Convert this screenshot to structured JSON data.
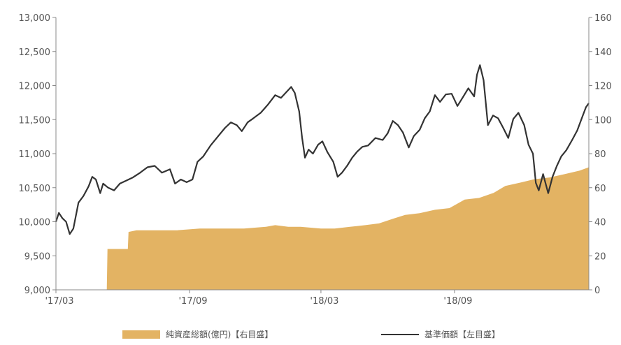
{
  "chart_data": {
    "type": "line",
    "x_ticks": [
      "'17/03",
      "'17/09",
      "'18/03",
      "'18/09"
    ],
    "left_axis": {
      "ticks": [
        "9,000",
        "9,500",
        "10,000",
        "10,500",
        "11,000",
        "11,500",
        "12,000",
        "12,500",
        "13,000"
      ],
      "range": [
        9000,
        13000
      ]
    },
    "right_axis": {
      "ticks": [
        "0",
        "20",
        "40",
        "60",
        "80",
        "100",
        "120",
        "140",
        "160"
      ],
      "range": [
        0,
        160
      ]
    },
    "grid": false,
    "series": [
      {
        "name": "純資産総額(億円)【右目盛】",
        "kind": "area",
        "axis": "right",
        "color": "#e3b363",
        "points": [
          [
            "2017-03-01",
            0
          ],
          [
            "2017-05-10",
            0
          ],
          [
            "2017-05-11",
            24
          ],
          [
            "2017-06-08",
            24
          ],
          [
            "2017-06-09",
            34
          ],
          [
            "2017-06-20",
            35
          ],
          [
            "2017-07-15",
            35
          ],
          [
            "2017-08-15",
            35
          ],
          [
            "2017-09-15",
            36
          ],
          [
            "2017-10-15",
            36
          ],
          [
            "2017-11-15",
            36
          ],
          [
            "2017-12-15",
            37
          ],
          [
            "2017-12-28",
            38
          ],
          [
            "2018-01-15",
            37
          ],
          [
            "2018-02-01",
            37
          ],
          [
            "2018-03-01",
            36
          ],
          [
            "2018-03-20",
            36
          ],
          [
            "2018-04-10",
            37
          ],
          [
            "2018-05-01",
            38
          ],
          [
            "2018-05-20",
            39
          ],
          [
            "2018-06-10",
            42
          ],
          [
            "2018-06-25",
            44
          ],
          [
            "2018-07-15",
            45
          ],
          [
            "2018-08-05",
            47
          ],
          [
            "2018-08-25",
            48
          ],
          [
            "2018-09-15",
            53
          ],
          [
            "2018-10-05",
            54
          ],
          [
            "2018-10-25",
            57
          ],
          [
            "2018-11-10",
            61
          ],
          [
            "2018-12-01",
            63
          ],
          [
            "2018-12-20",
            65
          ],
          [
            "2019-01-10",
            66
          ],
          [
            "2019-01-31",
            68
          ],
          [
            "2019-02-20",
            70
          ],
          [
            "2019-03-05",
            72
          ]
        ]
      },
      {
        "name": "基準価額【左目盛】",
        "kind": "line",
        "axis": "left",
        "color": "#333333",
        "points": [
          [
            "2017-03-01",
            10000
          ],
          [
            "2017-03-05",
            10130
          ],
          [
            "2017-03-10",
            10050
          ],
          [
            "2017-03-15",
            10000
          ],
          [
            "2017-03-20",
            9820
          ],
          [
            "2017-03-25",
            9900
          ],
          [
            "2017-04-01",
            10280
          ],
          [
            "2017-04-08",
            10380
          ],
          [
            "2017-04-15",
            10520
          ],
          [
            "2017-04-20",
            10660
          ],
          [
            "2017-04-25",
            10620
          ],
          [
            "2017-05-01",
            10420
          ],
          [
            "2017-05-05",
            10560
          ],
          [
            "2017-05-12",
            10500
          ],
          [
            "2017-05-20",
            10460
          ],
          [
            "2017-05-28",
            10560
          ],
          [
            "2017-06-05",
            10600
          ],
          [
            "2017-06-15",
            10650
          ],
          [
            "2017-06-25",
            10720
          ],
          [
            "2017-07-05",
            10800
          ],
          [
            "2017-07-15",
            10820
          ],
          [
            "2017-07-25",
            10720
          ],
          [
            "2017-08-05",
            10770
          ],
          [
            "2017-08-12",
            10560
          ],
          [
            "2017-08-20",
            10620
          ],
          [
            "2017-08-28",
            10580
          ],
          [
            "2017-09-05",
            10620
          ],
          [
            "2017-09-12",
            10880
          ],
          [
            "2017-09-20",
            10960
          ],
          [
            "2017-09-30",
            11120
          ],
          [
            "2017-10-10",
            11250
          ],
          [
            "2017-10-20",
            11380
          ],
          [
            "2017-10-28",
            11460
          ],
          [
            "2017-11-05",
            11420
          ],
          [
            "2017-11-12",
            11330
          ],
          [
            "2017-11-20",
            11460
          ],
          [
            "2017-11-28",
            11520
          ],
          [
            "2017-12-08",
            11600
          ],
          [
            "2017-12-18",
            11720
          ],
          [
            "2017-12-28",
            11860
          ],
          [
            "2018-01-05",
            11820
          ],
          [
            "2018-01-12",
            11900
          ],
          [
            "2018-01-19",
            11980
          ],
          [
            "2018-01-24",
            11890
          ],
          [
            "2018-01-30",
            11620
          ],
          [
            "2018-02-03",
            11240
          ],
          [
            "2018-02-07",
            10940
          ],
          [
            "2018-02-12",
            11060
          ],
          [
            "2018-02-18",
            11000
          ],
          [
            "2018-02-25",
            11130
          ],
          [
            "2018-03-03",
            11180
          ],
          [
            "2018-03-10",
            11020
          ],
          [
            "2018-03-18",
            10880
          ],
          [
            "2018-03-24",
            10660
          ],
          [
            "2018-03-30",
            10720
          ],
          [
            "2018-04-06",
            10820
          ],
          [
            "2018-04-13",
            10940
          ],
          [
            "2018-04-20",
            11030
          ],
          [
            "2018-04-27",
            11100
          ],
          [
            "2018-05-05",
            11120
          ],
          [
            "2018-05-15",
            11230
          ],
          [
            "2018-05-25",
            11200
          ],
          [
            "2018-06-01",
            11300
          ],
          [
            "2018-06-08",
            11480
          ],
          [
            "2018-06-15",
            11420
          ],
          [
            "2018-06-22",
            11310
          ],
          [
            "2018-06-30",
            11090
          ],
          [
            "2018-07-07",
            11260
          ],
          [
            "2018-07-15",
            11350
          ],
          [
            "2018-07-22",
            11520
          ],
          [
            "2018-07-29",
            11620
          ],
          [
            "2018-08-05",
            11860
          ],
          [
            "2018-08-12",
            11760
          ],
          [
            "2018-08-20",
            11870
          ],
          [
            "2018-08-28",
            11880
          ],
          [
            "2018-09-05",
            11700
          ],
          [
            "2018-09-12",
            11820
          ],
          [
            "2018-09-20",
            11960
          ],
          [
            "2018-09-28",
            11840
          ],
          [
            "2018-10-02",
            12160
          ],
          [
            "2018-10-06",
            12300
          ],
          [
            "2018-10-11",
            12080
          ],
          [
            "2018-10-17",
            11420
          ],
          [
            "2018-10-24",
            11560
          ],
          [
            "2018-10-31",
            11520
          ],
          [
            "2018-11-07",
            11380
          ],
          [
            "2018-11-14",
            11230
          ],
          [
            "2018-11-21",
            11510
          ],
          [
            "2018-11-28",
            11600
          ],
          [
            "2018-12-06",
            11420
          ],
          [
            "2018-12-12",
            11130
          ],
          [
            "2018-12-18",
            11000
          ],
          [
            "2018-12-22",
            10570
          ],
          [
            "2018-12-26",
            10460
          ],
          [
            "2019-01-01",
            10700
          ],
          [
            "2019-01-08",
            10420
          ],
          [
            "2019-01-14",
            10660
          ],
          [
            "2019-01-20",
            10820
          ],
          [
            "2019-01-26",
            10960
          ],
          [
            "2019-02-02",
            11050
          ],
          [
            "2019-02-10",
            11200
          ],
          [
            "2019-02-17",
            11340
          ],
          [
            "2019-02-24",
            11540
          ],
          [
            "2019-03-01",
            11680
          ],
          [
            "2019-03-05",
            11740
          ]
        ]
      }
    ]
  }
}
